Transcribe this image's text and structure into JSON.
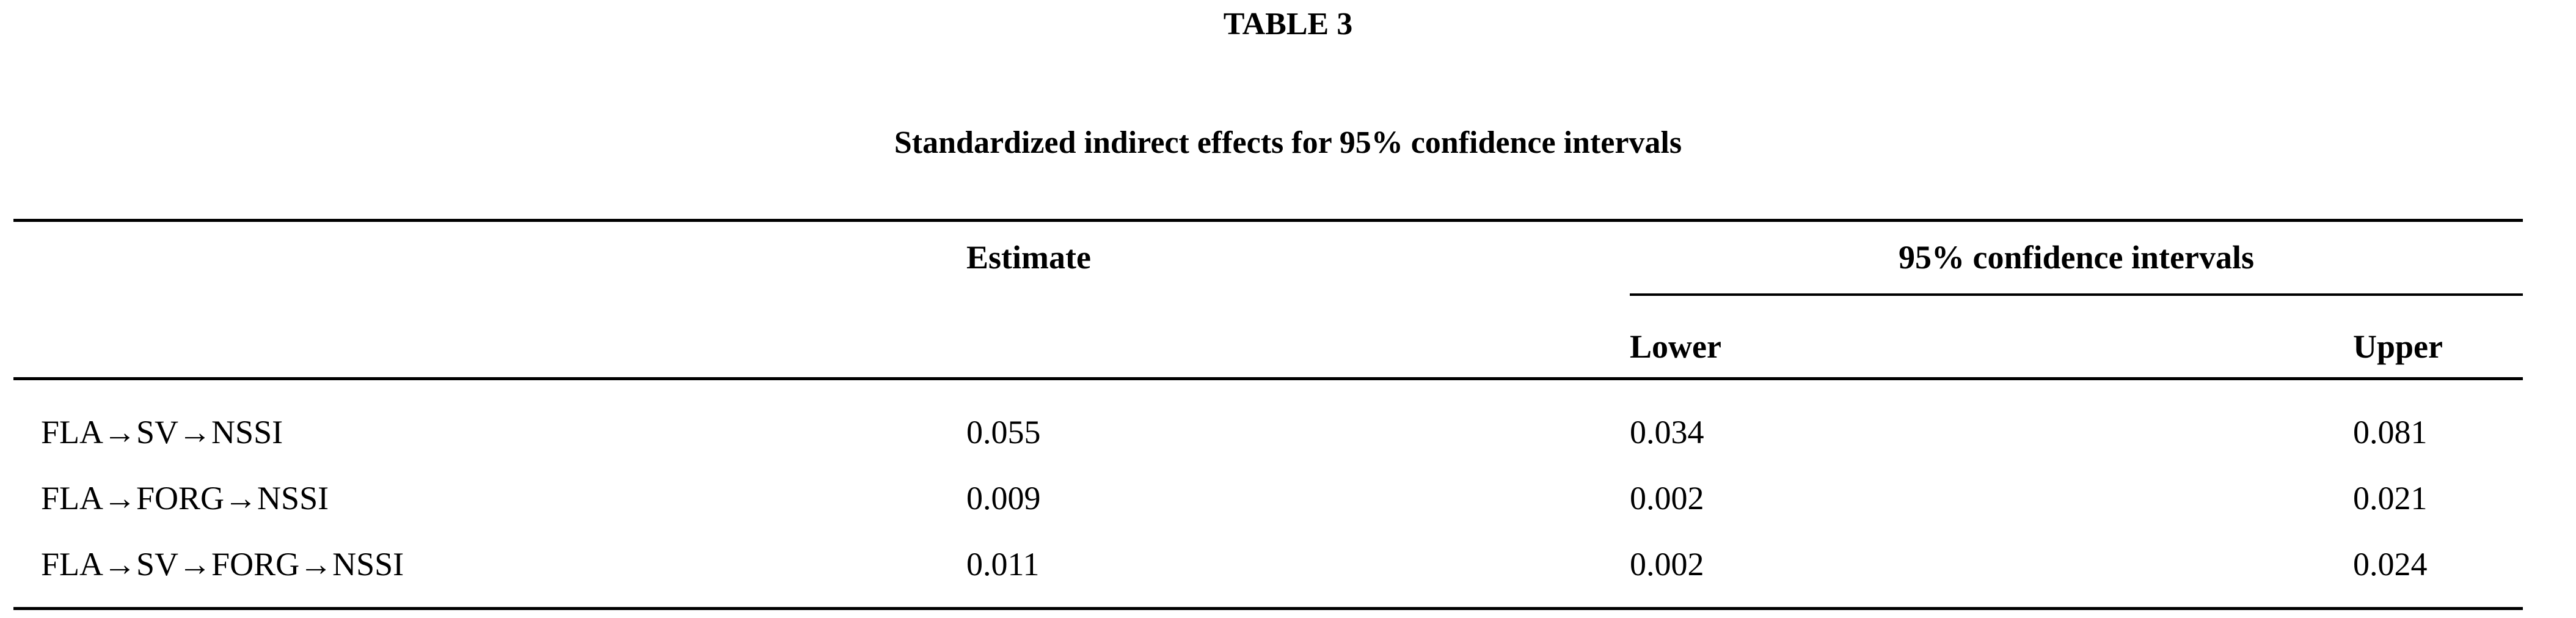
{
  "table": {
    "label": "TABLE 3",
    "caption": "Standardized indirect effects for 95% confidence intervals",
    "headers": {
      "estimate": "Estimate",
      "ci_group": "95% confidence intervals",
      "lower": "Lower",
      "upper": "Upper"
    },
    "rows": [
      {
        "path": "FLA→SV→NSSI",
        "estimate": "0.055",
        "lower": "0.034",
        "upper": "0.081"
      },
      {
        "path": "FLA→FORG→NSSI",
        "estimate": "0.009",
        "lower": "0.002",
        "upper": "0.021"
      },
      {
        "path": "FLA→SV→FORG→NSSI",
        "estimate": "0.011",
        "lower": "0.002",
        "upper": "0.024"
      }
    ]
  }
}
